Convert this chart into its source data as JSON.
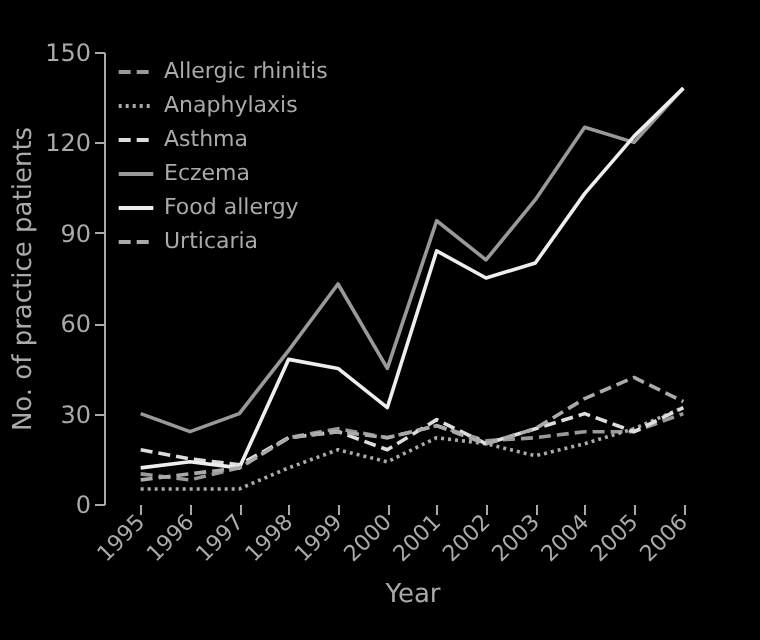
{
  "chart_data": {
    "type": "line",
    "xlabel": "Year",
    "ylabel": "No. of practice patients",
    "categories": [
      "1995",
      "1996",
      "1997",
      "1998",
      "1999",
      "2000",
      "2001",
      "2002",
      "2003",
      "2004",
      "2005",
      "2006"
    ],
    "ylim": [
      0,
      150
    ],
    "yticks": [
      0,
      30,
      60,
      90,
      120,
      150
    ],
    "grid": false,
    "legend": "top left",
    "marker": "none",
    "series": [
      {
        "name": "Allergic rhinitis",
        "color": "#999999",
        "line_style": "dashed",
        "values": [
          10,
          8,
          12,
          22,
          25,
          22,
          26,
          21,
          22,
          24,
          24,
          30
        ]
      },
      {
        "name": "Anaphylaxis",
        "color": "#aaaaaa",
        "line_style": "dotted",
        "values": [
          5,
          5,
          5,
          12,
          18,
          14,
          22,
          20,
          16,
          20,
          25,
          32
        ]
      },
      {
        "name": "Asthma",
        "color": "#dddddd",
        "line_style": "dashed",
        "values": [
          18,
          15,
          13,
          22,
          24,
          18,
          28,
          20,
          25,
          30,
          24,
          32
        ]
      },
      {
        "name": "Eczema",
        "color": "#999999",
        "line_style": "solid",
        "values": [
          30,
          24,
          30,
          51,
          73,
          45,
          94,
          81,
          101,
          125,
          120,
          138
        ]
      },
      {
        "name": "Food allergy",
        "color": "#eeeeee",
        "line_style": "solid",
        "values": [
          12,
          14,
          12,
          48,
          45,
          32,
          84,
          75,
          80,
          103,
          122,
          138
        ]
      },
      {
        "name": "Urticaria",
        "color": "#aaaaaa",
        "line_style": "dashed",
        "values": [
          8,
          10,
          12,
          22,
          24,
          22,
          26,
          20,
          25,
          35,
          42,
          34
        ]
      }
    ]
  }
}
